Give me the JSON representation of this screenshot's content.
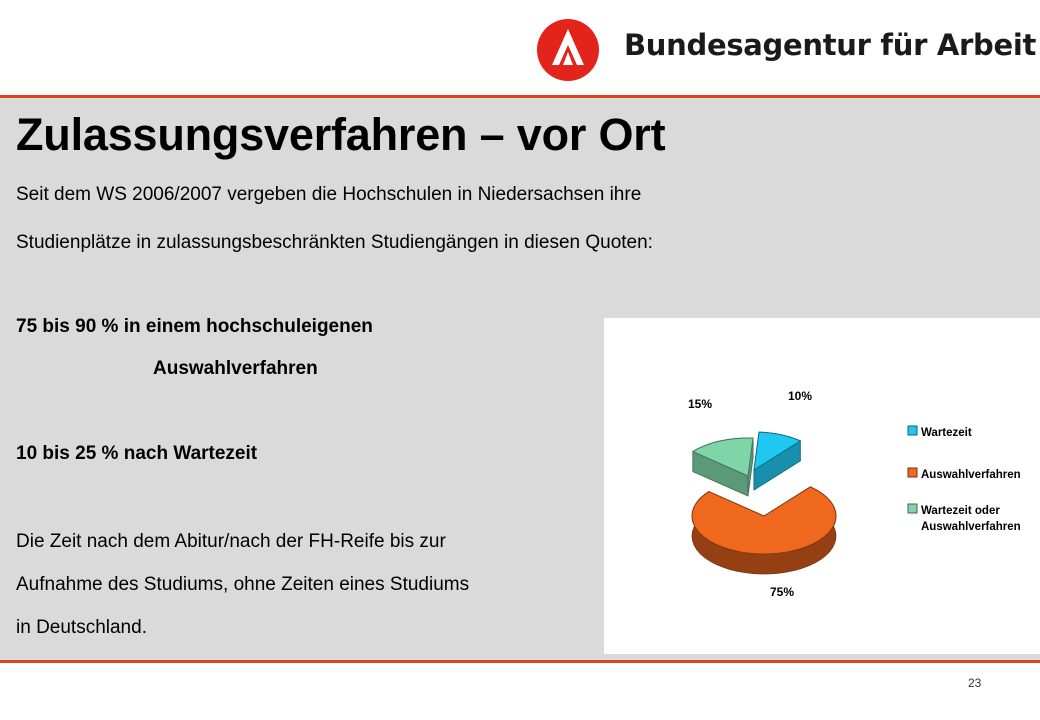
{
  "header": {
    "brand_name": "Bundesagentur für Arbeit",
    "accent_color": "#d9441f",
    "logo_icon": "ba-logo-icon"
  },
  "slide": {
    "title": "Zulassungsverfahren – vor Ort",
    "intro_line_1": "Seit dem WS 2006/2007 vergeben die Hochschulen in Niedersachsen ihre",
    "intro_line_2": "Studienplätze in zulassungsbeschränkten Studiengängen in diesen Quoten:",
    "quota_1_line_1": "75 bis 90 % in einem hochschuleigenen",
    "quota_1_line_2": "Auswahlverfahren",
    "quota_2": "10 bis 25 % nach Wartezeit",
    "wait_line_1": "Die Zeit nach dem Abitur/nach der FH-Reife bis zur",
    "wait_line_2": "Aufnahme des Studiums, ohne Zeiten eines Studiums",
    "wait_line_3": "in Deutschland.",
    "page_number": "23"
  },
  "chart_data": {
    "type": "pie",
    "three_d": true,
    "exploded": true,
    "categories": [
      "Wartezeit",
      "Auswahlverfahren",
      "Wartezeit oder Auswahlverfahren"
    ],
    "values": [
      10,
      75,
      15
    ],
    "labels": [
      "10%",
      "75%",
      "15%"
    ],
    "colors": [
      "#1ec8f0",
      "#f0681e",
      "#7fd4a8"
    ],
    "legend": {
      "position": "right",
      "entries": [
        [
          "Wartezeit"
        ],
        [
          "Auswahlverfahren"
        ],
        [
          "Wartezeit oder",
          "Auswahlverfahren"
        ]
      ]
    }
  }
}
